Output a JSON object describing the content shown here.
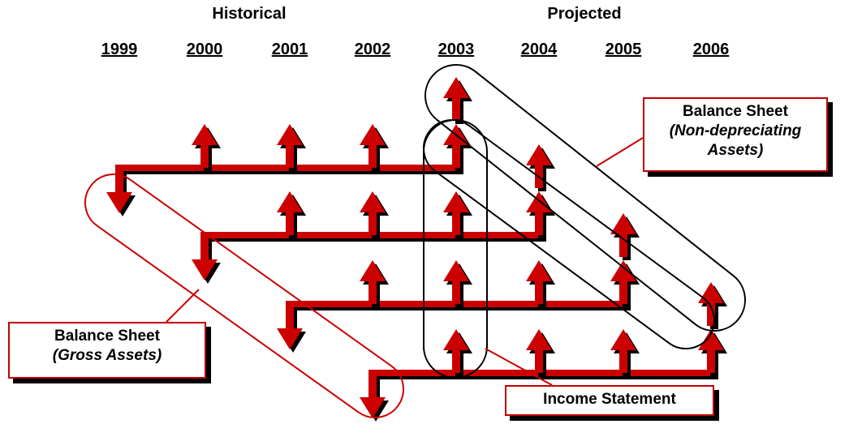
{
  "header": {
    "historical": "Historical",
    "projected": "Projected"
  },
  "years": [
    "1999",
    "2000",
    "2001",
    "2002",
    "2003",
    "2004",
    "2005",
    "2006"
  ],
  "callouts": [
    {
      "title": "Balance Sheet",
      "subtitle": "(Non-depreciating Assets)"
    },
    {
      "title": "Balance Sheet",
      "subtitle": "(Gross Assets)"
    },
    {
      "title": "Income Statement"
    }
  ]
}
